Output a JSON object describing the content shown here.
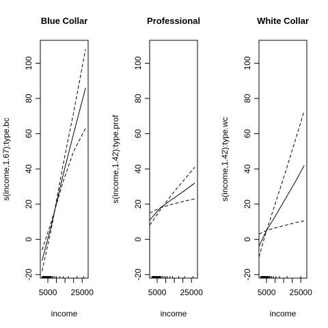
{
  "chart_data": [
    {
      "type": "line",
      "title": "Blue Collar",
      "xlabel": "income",
      "ylabel": "s(income,1.67):type.bc",
      "xlim": [
        600,
        28500
      ],
      "ylim": [
        -22,
        113
      ],
      "x_ticks": [
        5000,
        10000,
        15000,
        20000,
        25000
      ],
      "x_tick_labels": [
        "5000",
        "",
        "",
        "",
        "25000"
      ],
      "y_ticks": [
        -20,
        0,
        20,
        40,
        60,
        80,
        100
      ],
      "y_tick_labels": [
        "-20",
        "0",
        "20",
        "40",
        "60",
        "80",
        "100"
      ],
      "series": [
        {
          "style": "solid",
          "x": [
            1656,
            7000,
            14000,
            20000,
            27000
          ],
          "y": [
            -12,
            8,
            37,
            60,
            86
          ]
        },
        {
          "style": "dashed",
          "x": [
            1656,
            7000,
            14000,
            20000,
            27000
          ],
          "y": [
            -6,
            10,
            33,
            50,
            63
          ]
        },
        {
          "style": "dashed",
          "x": [
            1656,
            7000,
            14000,
            20000,
            27000
          ],
          "y": [
            -18,
            6,
            43,
            72,
            108
          ]
        }
      ],
      "rug": [
        1656,
        2000,
        2300,
        2500,
        2800,
        3000,
        3200,
        3400,
        3600,
        3800,
        4000,
        4200,
        4400,
        4600,
        4800,
        5000,
        5300,
        5600,
        6000,
        6400,
        6800,
        7400,
        8000,
        9000,
        10000,
        12000,
        14000,
        17000,
        22000,
        25879
      ]
    },
    {
      "type": "line",
      "title": "Professional",
      "xlabel": "income",
      "ylabel": "s(income,1.42):type.prof",
      "xlim": [
        600,
        28500
      ],
      "ylim": [
        -22,
        113
      ],
      "x_ticks": [
        5000,
        10000,
        15000,
        20000,
        25000
      ],
      "x_tick_labels": [
        "5000",
        "",
        "",
        "",
        "25000"
      ],
      "y_ticks": [
        -20,
        0,
        20,
        40,
        60,
        80,
        100
      ],
      "y_tick_labels": [
        "-20",
        "0",
        "20",
        "40",
        "60",
        "80",
        "100"
      ],
      "series": [
        {
          "style": "solid",
          "x": [
            600,
            7000,
            14000,
            20000,
            27000
          ],
          "y": [
            11,
            18,
            23,
            27,
            32
          ]
        },
        {
          "style": "dashed",
          "x": [
            600,
            7000,
            14000,
            20000,
            27000
          ],
          "y": [
            15,
            18,
            20,
            21.5,
            23
          ]
        },
        {
          "style": "dashed",
          "x": [
            600,
            7000,
            14000,
            20000,
            27000
          ],
          "y": [
            8,
            17,
            26,
            33,
            41
          ]
        }
      ],
      "rug": [
        1900,
        2300,
        2600,
        2900,
        3200,
        3500,
        3800,
        4100,
        4400,
        4700,
        5000,
        5300,
        5600,
        6000,
        6400,
        6800,
        7300,
        8000,
        9000,
        10000,
        11000,
        12500,
        14000,
        17500,
        21000,
        25879
      ]
    },
    {
      "type": "line",
      "title": "White Collar",
      "xlabel": "income",
      "ylabel": "s(income,1.42):type.wc",
      "xlim": [
        600,
        28500
      ],
      "ylim": [
        -22,
        113
      ],
      "x_ticks": [
        5000,
        10000,
        15000,
        20000,
        25000
      ],
      "x_tick_labels": [
        "5000",
        "",
        "",
        "",
        "25000"
      ],
      "y_ticks": [
        -20,
        0,
        20,
        40,
        60,
        80,
        100
      ],
      "y_tick_labels": [
        "-20",
        "0",
        "20",
        "40",
        "60",
        "80",
        "100"
      ],
      "series": [
        {
          "style": "solid",
          "x": [
            600,
            5000,
            10000,
            16000,
            22000,
            27000
          ],
          "y": [
            -4,
            5,
            13,
            23,
            33,
            42
          ]
        },
        {
          "style": "dashed",
          "x": [
            600,
            5000,
            10000,
            16000,
            22000,
            27000
          ],
          "y": [
            3,
            5,
            6.5,
            8,
            9.5,
            10.5
          ]
        },
        {
          "style": "dashed",
          "x": [
            600,
            5000,
            10000,
            16000,
            22000,
            27000
          ],
          "y": [
            -10,
            5,
            20,
            38,
            57,
            73
          ]
        }
      ],
      "rug": [
        1500,
        1900,
        2300,
        2600,
        2900,
        3200,
        3500,
        3800,
        4100,
        4400,
        4700,
        5000,
        5400,
        5800,
        6200,
        6700,
        7300,
        8000,
        9000,
        10500,
        12500,
        17000,
        25000
      ]
    }
  ]
}
